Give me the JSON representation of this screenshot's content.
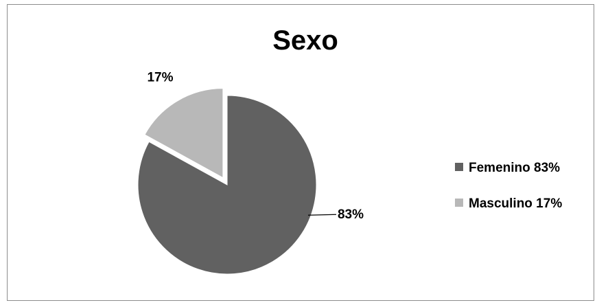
{
  "chart_data": {
    "type": "pie",
    "title": "Sexo",
    "slices": [
      {
        "label": "Femenino 83%",
        "value": 83,
        "data_label": "83%",
        "color": "#616161",
        "exploded": false
      },
      {
        "label": "Masculino 17%",
        "value": 17,
        "data_label": "17%",
        "color": "#b8b8b8",
        "exploded": true
      }
    ],
    "legend_position": "right",
    "start_angle_deg": 0,
    "direction": "clockwise"
  }
}
